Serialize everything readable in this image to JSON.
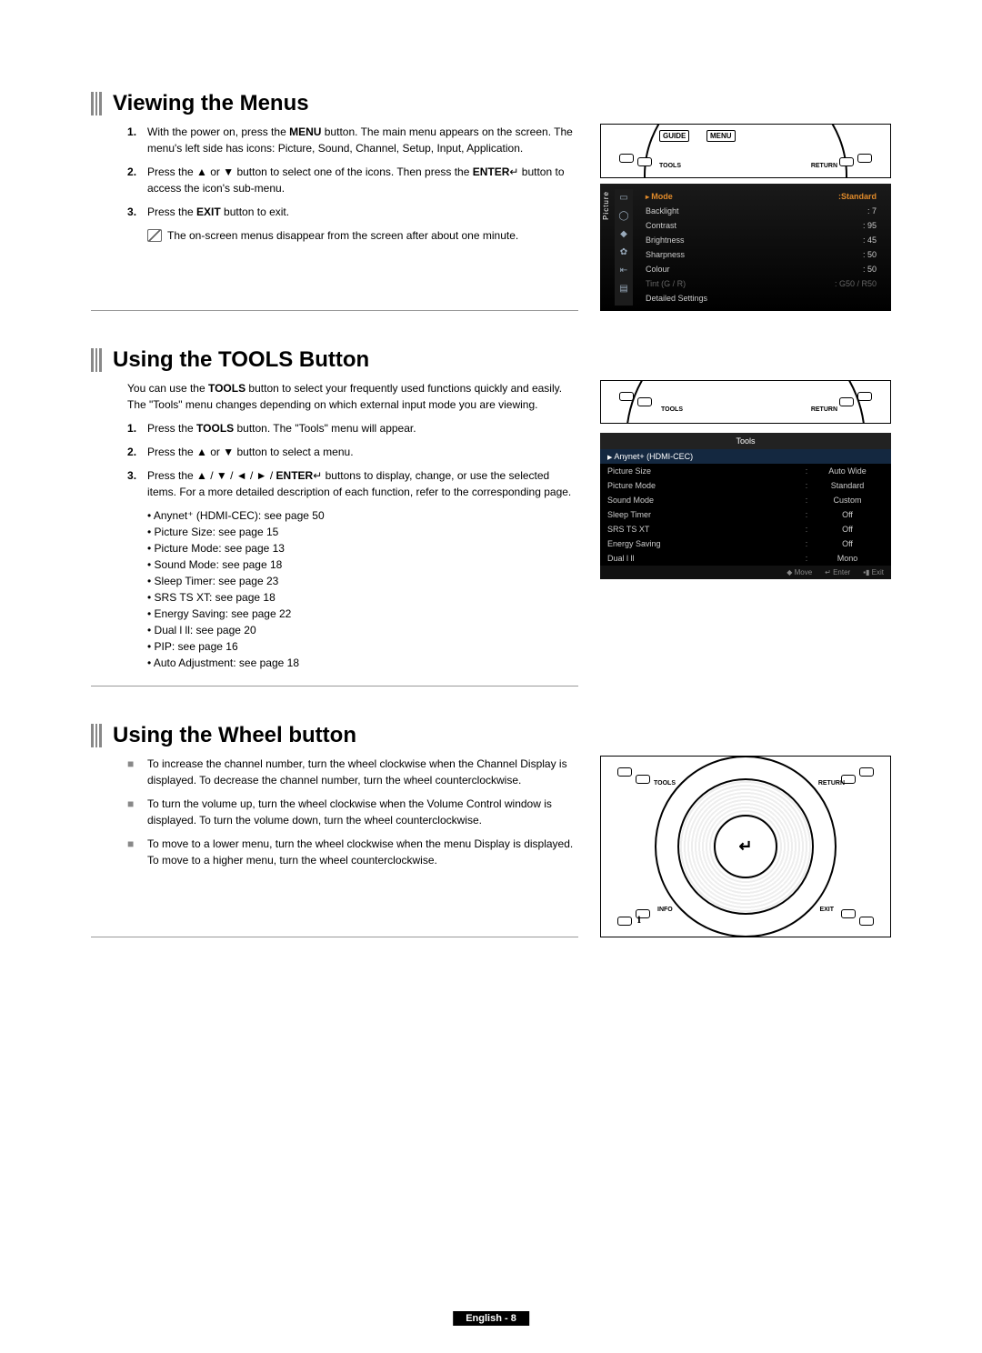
{
  "footer": {
    "label": "English - 8"
  },
  "section1": {
    "title": "Viewing the Menus",
    "items": [
      {
        "html": "With the power on, press the <span class='bold'>MENU</span> button. The main menu appears on the screen. The menu's left side has icons: Picture, Sound, Channel, Setup, Input, Application."
      },
      {
        "html": "Press the ▲ or ▼ button to select one of the icons. Then press the <span class='bold'>ENTER</span>↵ button to access the icon's sub-menu."
      },
      {
        "html": "Press the <span class='bold'>EXIT</span> button to exit."
      }
    ],
    "note": "The on-screen menus disappear from the screen after about one minute.",
    "remote": {
      "btnGuide": "GUIDE",
      "btnMenu": "MENU",
      "arcTools": "TOOLS",
      "arcReturn": "RETURN"
    },
    "osd": {
      "sideLabel": "Picture",
      "head": {
        "k": "Mode",
        "v": "Standard"
      },
      "rows": [
        {
          "k": "Backlight",
          "v": ": 7"
        },
        {
          "k": "Contrast",
          "v": ": 95"
        },
        {
          "k": "Brightness",
          "v": ": 45"
        },
        {
          "k": "Sharpness",
          "v": ": 50"
        },
        {
          "k": "Colour",
          "v": ": 50"
        },
        {
          "k": "Tint (G / R)",
          "v": ": G50 / R50",
          "dim": true
        },
        {
          "k": "Detailed Settings",
          "v": ""
        }
      ]
    }
  },
  "section2": {
    "title": "Using the TOOLS Button",
    "intro": "You can use the <span class='bold'>TOOLS</span> button to select your frequently used functions quickly and easily. The \"Tools\" menu changes depending on which external input mode you are viewing.",
    "items": [
      {
        "html": "Press the <span class='bold'>TOOLS</span> button. The \"Tools\" menu will appear."
      },
      {
        "html": "Press the ▲ or ▼ button to select a menu."
      },
      {
        "html": "Press the ▲ / ▼ / ◄ / ► / <span class='bold'>ENTER</span>↵ buttons to display, change, or use the selected items. For a more detailed description of each function, refer to the corresponding page."
      }
    ],
    "bullets": [
      "Anynet⁺ (HDMI-CEC): see page 50",
      "Picture Size: see page 15",
      "Picture Mode: see page 13",
      "Sound Mode: see page 18",
      "Sleep Timer: see page 23",
      "SRS TS XT: see page 18",
      "Energy Saving: see page 22",
      "Dual l ll: see page 20",
      "PIP: see page 16",
      "Auto Adjustment: see page 18"
    ],
    "toolsOsd": {
      "title": "Tools",
      "highlight": "Anynet+ (HDMI-CEC)",
      "rows": [
        {
          "k": "Picture Size",
          "v": "Auto Wide"
        },
        {
          "k": "Picture Mode",
          "v": "Standard"
        },
        {
          "k": "Sound Mode",
          "v": "Custom"
        },
        {
          "k": "Sleep Timer",
          "v": "Off"
        },
        {
          "k": "SRS TS XT",
          "v": "Off"
        },
        {
          "k": "Energy Saving",
          "v": "Off"
        },
        {
          "k": "Dual l ll",
          "v": "Mono"
        }
      ],
      "footer": {
        "a": "◆ Move",
        "b": "↵ Enter",
        "c": "▪▮ Exit"
      }
    },
    "remote": {
      "arcTools": "TOOLS",
      "arcReturn": "RETURN"
    }
  },
  "section3": {
    "title": "Using the Wheel button",
    "items": [
      "To increase the channel number, turn the wheel clockwise when the Channel Display is displayed. To decrease the channel number, turn the wheel counterclockwise.",
      "To turn the volume up, turn the wheel clockwise when the Volume Control window is displayed. To turn the volume down, turn the wheel counterclockwise.",
      "To move to a lower menu, turn the wheel clockwise when the menu Display is displayed. To move to a higher menu, turn the wheel counterclockwise."
    ],
    "wheel": {
      "tl": "TOOLS",
      "tr": "RETURN",
      "bl": "INFO",
      "br": "EXIT",
      "center": "↵"
    }
  }
}
